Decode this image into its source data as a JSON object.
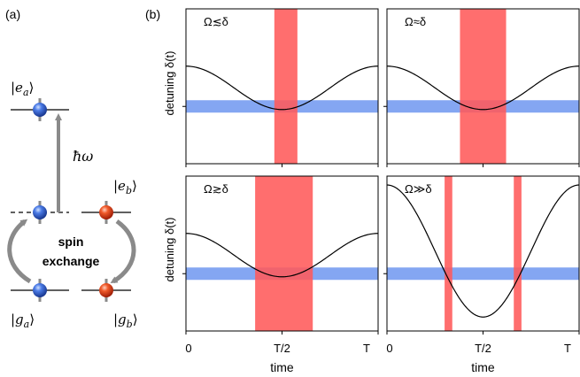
{
  "panel_a": {
    "label": "(a)",
    "levels": {
      "ea": "|e",
      "ea_sub": "a",
      "eb": "|e",
      "eb_sub": "b",
      "ga": "|g",
      "ga_sub": "a",
      "gb": "|g",
      "gb_sub": "b",
      "ket_close": "⟩"
    },
    "photon": "ħω",
    "exchange_line1": "spin",
    "exchange_line2": "exchange",
    "colors": {
      "atom_a": "#2f5fd0",
      "atom_b": "#e0401c",
      "arrow": "#8a8a8a"
    }
  },
  "panel_b": {
    "label": "(b)",
    "ylabel": "detuning δ(t)",
    "xlabel": "time",
    "xticks": [
      "0",
      "T/2",
      "T"
    ],
    "colors": {
      "band": "#6f97f0",
      "pulse": "#ff5a5a",
      "curve": "#000000"
    }
  },
  "chart_data": [
    {
      "type": "line",
      "title": "Ω≲δ",
      "xlabel": "",
      "ylabel": "detuning δ(t)",
      "curve": "cosine",
      "xlim": [
        0,
        1
      ],
      "resonance_band": true,
      "pulse_windows": [
        [
          0.46,
          0.58
        ]
      ]
    },
    {
      "type": "line",
      "title": "Ω≈δ",
      "xlabel": "",
      "ylabel": "",
      "curve": "cosine",
      "xlim": [
        0,
        1
      ],
      "resonance_band": true,
      "pulse_windows": [
        [
          0.38,
          0.62
        ]
      ]
    },
    {
      "type": "line",
      "title": "Ω≳δ",
      "xlabel": "time",
      "ylabel": "detuning δ(t)",
      "curve": "cosine",
      "xlim": [
        0,
        1
      ],
      "resonance_band": true,
      "pulse_windows": [
        [
          0.36,
          0.66
        ]
      ]
    },
    {
      "type": "line",
      "title": "Ω≫δ",
      "xlabel": "time",
      "ylabel": "",
      "curve": "cosine-deep",
      "xlim": [
        0,
        1
      ],
      "resonance_band": true,
      "pulse_windows": [
        [
          0.3,
          0.34
        ],
        [
          0.66,
          0.7
        ]
      ]
    }
  ]
}
